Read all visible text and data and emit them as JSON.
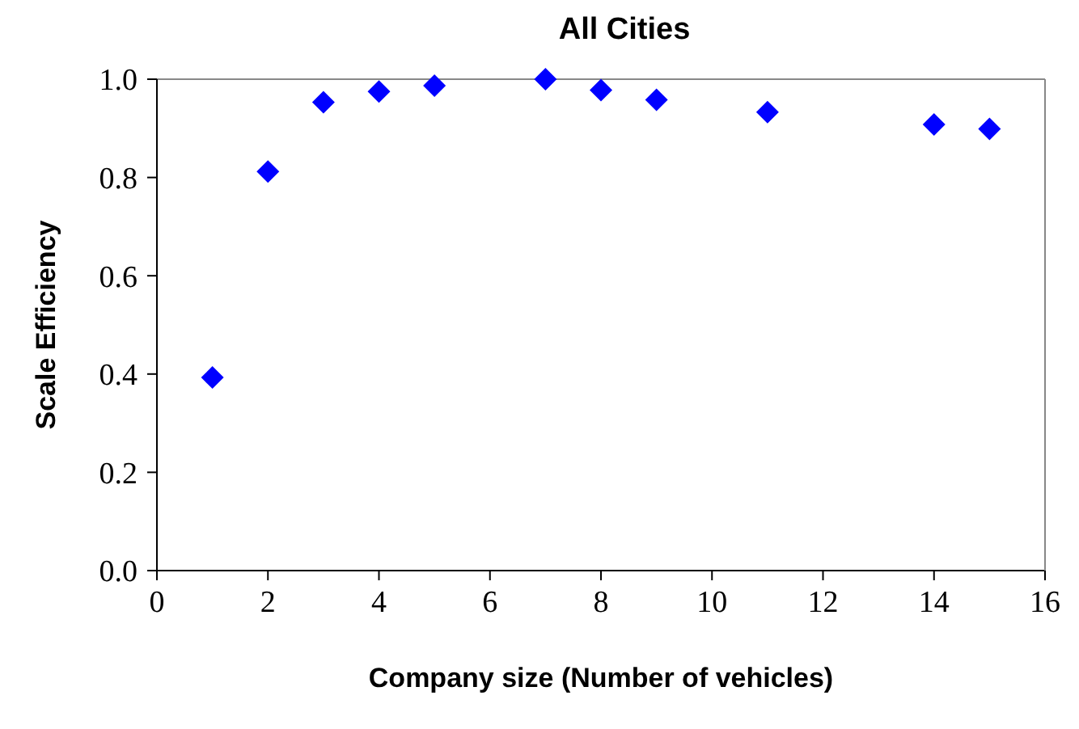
{
  "chart_data": {
    "type": "scatter",
    "title": "All Cities",
    "xlabel": "Company size (Number of vehicles)",
    "ylabel": "Scale Efficiency",
    "x": [
      1,
      2,
      3,
      4,
      5,
      7,
      8,
      9,
      11,
      14,
      15
    ],
    "values": [
      0.393,
      0.812,
      0.953,
      0.975,
      0.987,
      1.0,
      0.978,
      0.958,
      0.933,
      0.908,
      0.899
    ],
    "color": "#0000ff",
    "marker": "diamond",
    "xlim": [
      0,
      16
    ],
    "xticks": [
      0,
      2,
      4,
      6,
      8,
      10,
      12,
      14,
      16
    ],
    "ylim": [
      0,
      1
    ],
    "yticks": [
      {
        "value": 0,
        "label": "0.0"
      },
      {
        "value": 0.2,
        "label": "0.2"
      },
      {
        "value": 0.4,
        "label": "0.4"
      },
      {
        "value": 0.6,
        "label": "0.6"
      },
      {
        "value": 0.8,
        "label": "0.8"
      },
      {
        "value": 1,
        "label": "1.0"
      }
    ],
    "grid": false,
    "legend": false
  }
}
